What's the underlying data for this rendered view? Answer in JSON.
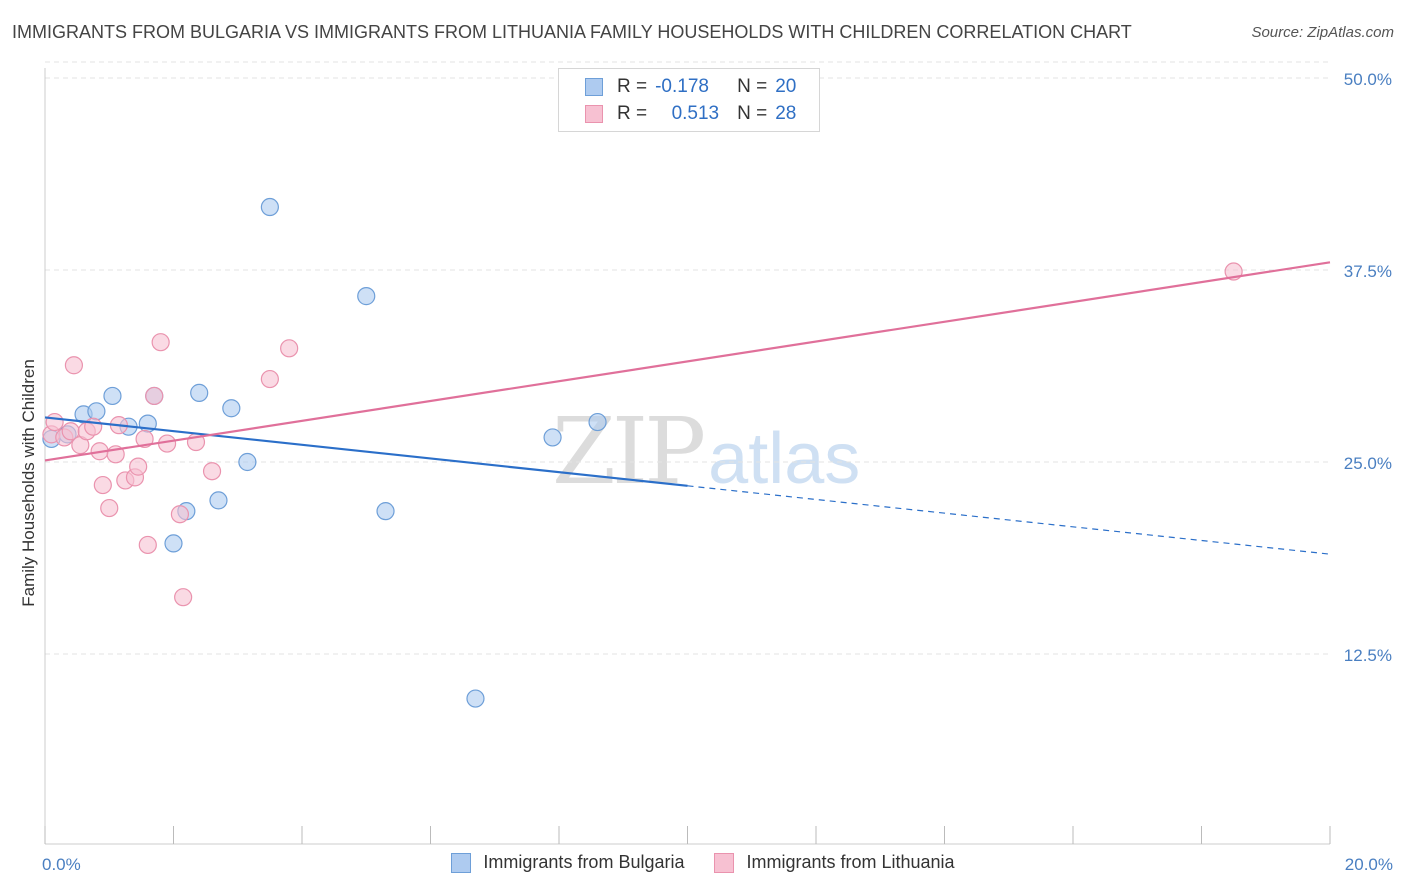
{
  "title": "IMMIGRANTS FROM BULGARIA VS IMMIGRANTS FROM LITHUANIA FAMILY HOUSEHOLDS WITH CHILDREN CORRELATION CHART",
  "source": "Source: ZipAtlas.com",
  "watermark": {
    "zip": "ZIP",
    "atlas": "atlas"
  },
  "legend": {
    "series1": {
      "r_label": "R =",
      "r_value": "-0.178",
      "n_label": "N =",
      "n_value": "20"
    },
    "series2": {
      "r_label": "R =",
      "r_value": "0.513",
      "n_label": "N =",
      "n_value": "28"
    }
  },
  "colors": {
    "bulgaria_fill": "#aecbf0",
    "bulgaria_stroke": "#6e9fd8",
    "bulgaria_line": "#2b6fc9",
    "lithuania_fill": "#f7c1d2",
    "lithuania_stroke": "#ea93ae",
    "lithuania_line": "#e0709a",
    "tick_text": "#4a7fc1",
    "grid": "#e3e3e3"
  },
  "chart_data": {
    "type": "scatter",
    "xlabel": "",
    "ylabel": "Family Households with Children",
    "xlim": [
      0,
      20
    ],
    "ylim": [
      0,
      52
    ],
    "x_tick_labels": [
      {
        "value": 0,
        "label": "0.0%"
      },
      {
        "value": 20,
        "label": "20.0%"
      }
    ],
    "y_tick_labels": [
      {
        "value": 12.5,
        "label": "12.5%"
      },
      {
        "value": 25,
        "label": "25.0%"
      },
      {
        "value": 37.5,
        "label": "37.5%"
      },
      {
        "value": 50,
        "label": "50.0%"
      }
    ],
    "x_minor_ticks": [
      0,
      2,
      4,
      6,
      8,
      10,
      12,
      14,
      16,
      18,
      20
    ],
    "grid": true,
    "series": [
      {
        "name": "Immigrants from Bulgaria",
        "color_key": "bulgaria",
        "points": [
          {
            "x": 0.1,
            "y": 26.5
          },
          {
            "x": 0.35,
            "y": 26.8
          },
          {
            "x": 0.6,
            "y": 28.1
          },
          {
            "x": 0.8,
            "y": 28.3
          },
          {
            "x": 1.05,
            "y": 29.3
          },
          {
            "x": 1.3,
            "y": 27.3
          },
          {
            "x": 1.6,
            "y": 27.5
          },
          {
            "x": 1.7,
            "y": 29.3
          },
          {
            "x": 2.0,
            "y": 19.7
          },
          {
            "x": 2.2,
            "y": 21.8
          },
          {
            "x": 2.4,
            "y": 29.5
          },
          {
            "x": 2.7,
            "y": 22.5
          },
          {
            "x": 2.9,
            "y": 28.5
          },
          {
            "x": 3.15,
            "y": 25.0
          },
          {
            "x": 3.5,
            "y": 41.6
          },
          {
            "x": 5.0,
            "y": 35.8
          },
          {
            "x": 5.3,
            "y": 21.8
          },
          {
            "x": 6.7,
            "y": 9.6
          },
          {
            "x": 7.9,
            "y": 26.6
          },
          {
            "x": 8.6,
            "y": 27.6
          }
        ],
        "trend": {
          "x0": 0,
          "y0": 27.9,
          "x1": 20,
          "y1": 19.0,
          "solid_until": 10.0
        }
      },
      {
        "name": "Immigrants from Lithuania",
        "color_key": "lithuania",
        "points": [
          {
            "x": 0.1,
            "y": 26.8
          },
          {
            "x": 0.15,
            "y": 27.6
          },
          {
            "x": 0.3,
            "y": 26.6
          },
          {
            "x": 0.4,
            "y": 27.0
          },
          {
            "x": 0.45,
            "y": 31.3
          },
          {
            "x": 0.55,
            "y": 26.1
          },
          {
            "x": 0.65,
            "y": 27.0
          },
          {
            "x": 0.75,
            "y": 27.3
          },
          {
            "x": 0.85,
            "y": 25.7
          },
          {
            "x": 0.9,
            "y": 23.5
          },
          {
            "x": 1.0,
            "y": 22.0
          },
          {
            "x": 1.1,
            "y": 25.5
          },
          {
            "x": 1.15,
            "y": 27.4
          },
          {
            "x": 1.25,
            "y": 23.8
          },
          {
            "x": 1.4,
            "y": 24.0
          },
          {
            "x": 1.45,
            "y": 24.7
          },
          {
            "x": 1.55,
            "y": 26.5
          },
          {
            "x": 1.6,
            "y": 19.6
          },
          {
            "x": 1.7,
            "y": 29.3
          },
          {
            "x": 1.8,
            "y": 32.8
          },
          {
            "x": 1.9,
            "y": 26.2
          },
          {
            "x": 2.1,
            "y": 21.6
          },
          {
            "x": 2.15,
            "y": 16.2
          },
          {
            "x": 2.35,
            "y": 26.3
          },
          {
            "x": 2.6,
            "y": 24.4
          },
          {
            "x": 3.5,
            "y": 30.4
          },
          {
            "x": 3.8,
            "y": 32.4
          },
          {
            "x": 18.5,
            "y": 37.4
          }
        ],
        "trend": {
          "x0": 0,
          "y0": 25.1,
          "x1": 20,
          "y1": 38.0,
          "solid_until": 20
        }
      }
    ]
  }
}
